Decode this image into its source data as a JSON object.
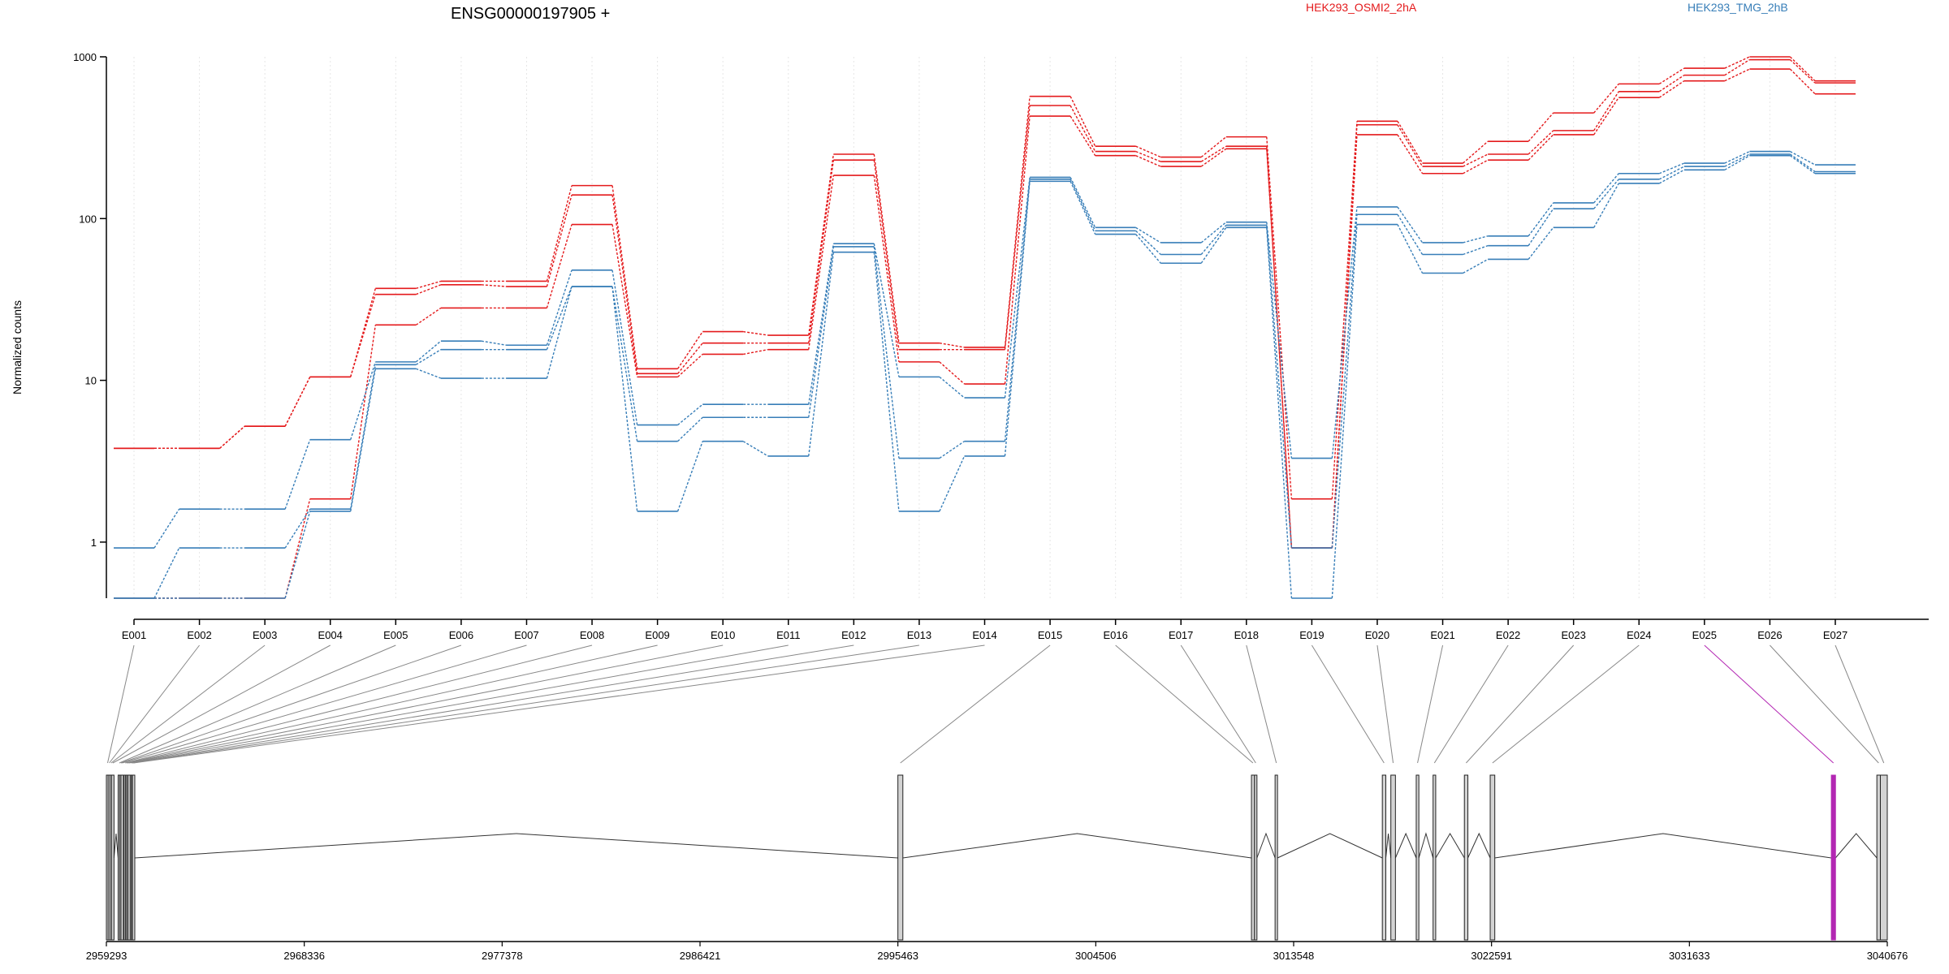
{
  "colors": {
    "group_a": "#e41a1c",
    "group_b": "#377eb8",
    "highlight": "#b327b3",
    "exon_fill": "#d3d3d3",
    "axis": "#000000",
    "grid": "#e6e6e6",
    "connector": "#888888"
  },
  "chart_data": {
    "type": "line",
    "title": "ENSG00000197905 +",
    "ylabel": "Normalized counts",
    "xlabel": "",
    "y_scale": "log",
    "ylim": [
      0.45,
      1000
    ],
    "y_ticks": [
      1,
      10,
      100,
      1000
    ],
    "y_tick_labels": [
      "1",
      "10",
      "100",
      "1000"
    ],
    "grid": "vertical",
    "legend_position": "top",
    "categories": [
      "E001",
      "E002",
      "E003",
      "E004",
      "E005",
      "E006",
      "E007",
      "E008",
      "E009",
      "E010",
      "E011",
      "E012",
      "E013",
      "E014",
      "E015",
      "E016",
      "E017",
      "E018",
      "E019",
      "E020",
      "E021",
      "E022",
      "E023",
      "E024",
      "E025",
      "E026",
      "E027"
    ],
    "series": [
      {
        "name": "HEK293_OSMI2_2hA",
        "group": "a",
        "values": [
          3.8,
          3.8,
          5.2,
          10.5,
          37,
          41,
          41,
          160,
          11.8,
          20,
          19,
          250,
          17,
          16,
          570,
          280,
          240,
          320,
          1.85,
          400,
          220,
          300,
          450,
          680,
          850,
          1000,
          710
        ]
      },
      {
        "name": "",
        "group": "a",
        "values": [
          3.8,
          3.8,
          5.2,
          10.5,
          34,
          39,
          38,
          140,
          11,
          17,
          17,
          230,
          15.5,
          15.5,
          500,
          260,
          225,
          280,
          0.92,
          380,
          210,
          250,
          350,
          610,
          770,
          960,
          690
        ]
      },
      {
        "name": "",
        "group": "a",
        "values": [
          0.45,
          0.45,
          0.45,
          1.85,
          22,
          28,
          28,
          92,
          10.5,
          14.5,
          15.5,
          185,
          13,
          9.5,
          430,
          245,
          210,
          270,
          0.92,
          330,
          190,
          230,
          330,
          560,
          710,
          840,
          590
        ]
      },
      {
        "name": "HEK293_TMG_2hB",
        "group": "b",
        "values": [
          0.92,
          1.6,
          1.6,
          4.3,
          13,
          17.5,
          16.5,
          48,
          5.3,
          7.1,
          7.1,
          70,
          10.5,
          7.8,
          180,
          88,
          71,
          95,
          3.3,
          118,
          71,
          78,
          125,
          190,
          220,
          260,
          215
        ]
      },
      {
        "name": "",
        "group": "b",
        "values": [
          0.45,
          0.92,
          0.92,
          1.6,
          12.5,
          15.5,
          15.5,
          38,
          4.2,
          5.9,
          5.9,
          67,
          3.3,
          4.2,
          175,
          84,
          60,
          91,
          0.92,
          106,
          60,
          68,
          115,
          175,
          210,
          250,
          195
        ]
      },
      {
        "name": "",
        "group": "b",
        "values": [
          0.45,
          0.45,
          0.45,
          1.55,
          11.8,
          10.3,
          10.3,
          38,
          1.55,
          4.2,
          3.4,
          62,
          1.55,
          3.4,
          170,
          80,
          53,
          88,
          0.45,
          92,
          46,
          56,
          88,
          165,
          200,
          245,
          190
        ]
      }
    ],
    "gene_model": {
      "x_range": [
        2959293,
        3040676
      ],
      "x_ticks": [
        2959293,
        2968336,
        2977378,
        2986421,
        2995463,
        3004506,
        3013548,
        3022591,
        3031633,
        3040676
      ],
      "x_tick_labels": [
        "2959293",
        "2968336",
        "2977378",
        "2986421",
        "2995463",
        "3004506",
        "3013548",
        "3022591",
        "3031633",
        "3040676"
      ],
      "exons": [
        {
          "id": "E001",
          "start": 2959293,
          "end": 2959372,
          "highlight": false
        },
        {
          "id": "E002",
          "start": 2959372,
          "end": 2959456,
          "highlight": false
        },
        {
          "id": "E003",
          "start": 2959456,
          "end": 2959530,
          "highlight": false
        },
        {
          "id": "E004",
          "start": 2959530,
          "end": 2959600,
          "highlight": false
        },
        {
          "id": "E005",
          "start": 2959830,
          "end": 2959900,
          "highlight": false
        },
        {
          "id": "E006",
          "start": 2959900,
          "end": 2959960,
          "highlight": false
        },
        {
          "id": "E007",
          "start": 2959960,
          "end": 2960010,
          "highlight": false
        },
        {
          "id": "E008",
          "start": 2960100,
          "end": 2960170,
          "highlight": false
        },
        {
          "id": "E009",
          "start": 2960170,
          "end": 2960220,
          "highlight": false
        },
        {
          "id": "E010",
          "start": 2960220,
          "end": 2960280,
          "highlight": false
        },
        {
          "id": "E011",
          "start": 2960280,
          "end": 2960320,
          "highlight": false
        },
        {
          "id": "E012",
          "start": 2960380,
          "end": 2960440,
          "highlight": false
        },
        {
          "id": "E013",
          "start": 2960440,
          "end": 2960480,
          "highlight": false
        },
        {
          "id": "E014",
          "start": 2960480,
          "end": 2960530,
          "highlight": false
        },
        {
          "id": "E015",
          "start": 2995463,
          "end": 2995690,
          "highlight": false
        },
        {
          "id": "E016",
          "start": 3011620,
          "end": 3011760,
          "highlight": false
        },
        {
          "id": "E017",
          "start": 3011760,
          "end": 3011850,
          "highlight": false
        },
        {
          "id": "E018",
          "start": 3012700,
          "end": 3012800,
          "highlight": false
        },
        {
          "id": "E019",
          "start": 3017600,
          "end": 3017760,
          "highlight": false
        },
        {
          "id": "E020",
          "start": 3017990,
          "end": 3018200,
          "highlight": false
        },
        {
          "id": "E021",
          "start": 3019150,
          "end": 3019270,
          "highlight": false
        },
        {
          "id": "E022",
          "start": 3019920,
          "end": 3020040,
          "highlight": false
        },
        {
          "id": "E023",
          "start": 3021350,
          "end": 3021510,
          "highlight": false
        },
        {
          "id": "E024",
          "start": 3022530,
          "end": 3022740,
          "highlight": false
        },
        {
          "id": "E025",
          "start": 3038120,
          "end": 3038310,
          "highlight": true
        },
        {
          "id": "E026",
          "start": 3040200,
          "end": 3040360,
          "highlight": false
        },
        {
          "id": "E027",
          "start": 3040360,
          "end": 3040676,
          "highlight": false
        }
      ]
    }
  }
}
